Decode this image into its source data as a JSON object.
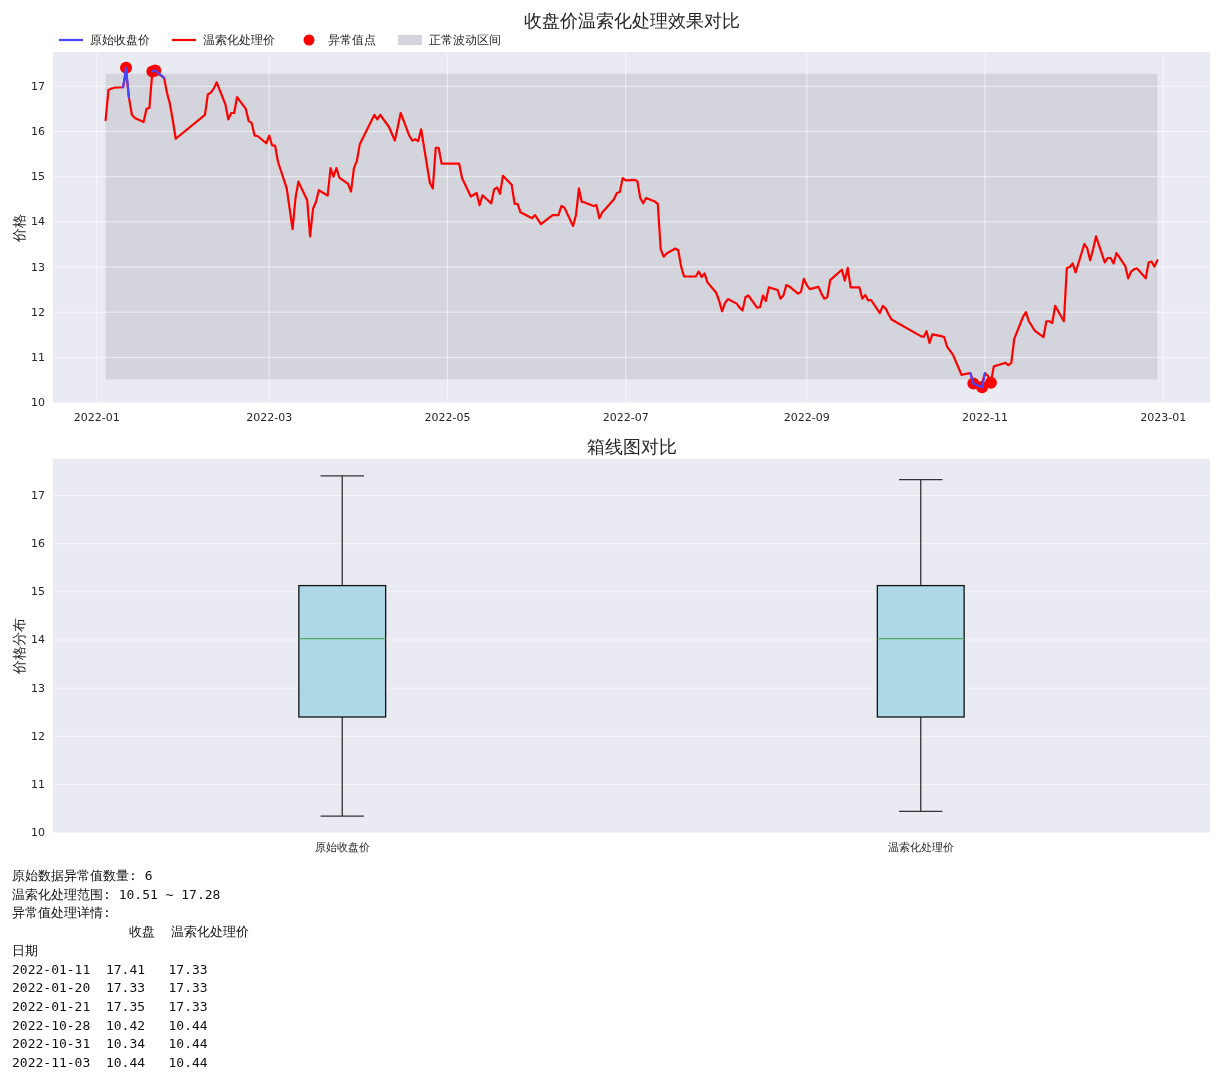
{
  "chart_data": [
    {
      "type": "line",
      "title": "收盘价温索化处理效果对比",
      "ylabel": "价格",
      "x": [
        "2022-01-04",
        "2022-01-05",
        "2022-01-06",
        "2022-01-07",
        "2022-01-10",
        "2022-01-11",
        "2022-01-12",
        "2022-01-13",
        "2022-01-14",
        "2022-01-17",
        "2022-01-18",
        "2022-01-19",
        "2022-01-20",
        "2022-01-21",
        "2022-01-24",
        "2022-01-25",
        "2022-01-26",
        "2022-01-27",
        "2022-01-28",
        "2022-02-07",
        "2022-02-08",
        "2022-02-09",
        "2022-02-10",
        "2022-02-11",
        "2022-02-14",
        "2022-02-15",
        "2022-02-16",
        "2022-02-17",
        "2022-02-18",
        "2022-02-21",
        "2022-02-22",
        "2022-02-23",
        "2022-02-24",
        "2022-02-25",
        "2022-02-28",
        "2022-03-01",
        "2022-03-02",
        "2022-03-03",
        "2022-03-04",
        "2022-03-07",
        "2022-03-08",
        "2022-03-09",
        "2022-03-10",
        "2022-03-11",
        "2022-03-14",
        "2022-03-15",
        "2022-03-16",
        "2022-03-17",
        "2022-03-18",
        "2022-03-21",
        "2022-03-22",
        "2022-03-23",
        "2022-03-24",
        "2022-03-25",
        "2022-03-28",
        "2022-03-29",
        "2022-03-30",
        "2022-03-31",
        "2022-04-01",
        "2022-04-06",
        "2022-04-07",
        "2022-04-08",
        "2022-04-11",
        "2022-04-12",
        "2022-04-13",
        "2022-04-14",
        "2022-04-15",
        "2022-04-18",
        "2022-04-19",
        "2022-04-20",
        "2022-04-21",
        "2022-04-22",
        "2022-04-25",
        "2022-04-26",
        "2022-04-27",
        "2022-04-28",
        "2022-04-29",
        "2022-05-05",
        "2022-05-06",
        "2022-05-09",
        "2022-05-10",
        "2022-05-11",
        "2022-05-12",
        "2022-05-13",
        "2022-05-16",
        "2022-05-17",
        "2022-05-18",
        "2022-05-19",
        "2022-05-20",
        "2022-05-23",
        "2022-05-24",
        "2022-05-25",
        "2022-05-26",
        "2022-05-27",
        "2022-05-30",
        "2022-05-31",
        "2022-06-01",
        "2022-06-02",
        "2022-06-06",
        "2022-06-07",
        "2022-06-08",
        "2022-06-09",
        "2022-06-10",
        "2022-06-13",
        "2022-06-14",
        "2022-06-15",
        "2022-06-16",
        "2022-06-17",
        "2022-06-20",
        "2022-06-21",
        "2022-06-22",
        "2022-06-23",
        "2022-06-24",
        "2022-06-27",
        "2022-06-28",
        "2022-06-29",
        "2022-06-30",
        "2022-07-01",
        "2022-07-04",
        "2022-07-05",
        "2022-07-06",
        "2022-07-07",
        "2022-07-08",
        "2022-07-11",
        "2022-07-12",
        "2022-07-13",
        "2022-07-14",
        "2022-07-15",
        "2022-07-18",
        "2022-07-19",
        "2022-07-20",
        "2022-07-21",
        "2022-07-22",
        "2022-07-25",
        "2022-07-26",
        "2022-07-27",
        "2022-07-28",
        "2022-07-29",
        "2022-08-01",
        "2022-08-02",
        "2022-08-03",
        "2022-08-04",
        "2022-08-05",
        "2022-08-08",
        "2022-08-09",
        "2022-08-10",
        "2022-08-11",
        "2022-08-12",
        "2022-08-15",
        "2022-08-16",
        "2022-08-17",
        "2022-08-18",
        "2022-08-19",
        "2022-08-22",
        "2022-08-23",
        "2022-08-24",
        "2022-08-25",
        "2022-08-26",
        "2022-08-29",
        "2022-08-30",
        "2022-08-31",
        "2022-09-01",
        "2022-09-02",
        "2022-09-05",
        "2022-09-06",
        "2022-09-07",
        "2022-09-08",
        "2022-09-09",
        "2022-09-13",
        "2022-09-14",
        "2022-09-15",
        "2022-09-16",
        "2022-09-19",
        "2022-09-20",
        "2022-09-21",
        "2022-09-22",
        "2022-09-23",
        "2022-09-26",
        "2022-09-27",
        "2022-09-28",
        "2022-09-29",
        "2022-09-30",
        "2022-10-10",
        "2022-10-11",
        "2022-10-12",
        "2022-10-13",
        "2022-10-14",
        "2022-10-17",
        "2022-10-18",
        "2022-10-19",
        "2022-10-20",
        "2022-10-21",
        "2022-10-24",
        "2022-10-25",
        "2022-10-26",
        "2022-10-27",
        "2022-10-28",
        "2022-10-31",
        "2022-11-01",
        "2022-11-02",
        "2022-11-03",
        "2022-11-04",
        "2022-11-07",
        "2022-11-08",
        "2022-11-09",
        "2022-11-10",
        "2022-11-11",
        "2022-11-14",
        "2022-11-15",
        "2022-11-16",
        "2022-11-17",
        "2022-11-18",
        "2022-11-21",
        "2022-11-22",
        "2022-11-23",
        "2022-11-24",
        "2022-11-25",
        "2022-11-28",
        "2022-11-29",
        "2022-11-30",
        "2022-12-01",
        "2022-12-02",
        "2022-12-05",
        "2022-12-06",
        "2022-12-07",
        "2022-12-08",
        "2022-12-09",
        "2022-12-12",
        "2022-12-13",
        "2022-12-14",
        "2022-12-15",
        "2022-12-16",
        "2022-12-19",
        "2022-12-20",
        "2022-12-21",
        "2022-12-22",
        "2022-12-23",
        "2022-12-26",
        "2022-12-27",
        "2022-12-28",
        "2022-12-29",
        "2022-12-30"
      ],
      "series": [
        {
          "name": "原始收盘价",
          "type": "line",
          "color": "#4646fb",
          "values": [
            null,
            null,
            null,
            null,
            16.98,
            17.41,
            16.75,
            null,
            null,
            null,
            null,
            null,
            17.33,
            17.35,
            17.19,
            null,
            null,
            null,
            null,
            null,
            null,
            null,
            null,
            null,
            null,
            null,
            null,
            null,
            null,
            null,
            null,
            null,
            null,
            null,
            null,
            null,
            null,
            null,
            null,
            null,
            null,
            null,
            null,
            null,
            null,
            null,
            null,
            null,
            null,
            null,
            null,
            null,
            null,
            null,
            null,
            null,
            null,
            null,
            null,
            null,
            null,
            null,
            null,
            null,
            null,
            null,
            null,
            null,
            null,
            null,
            null,
            null,
            null,
            null,
            null,
            null,
            null,
            null,
            null,
            null,
            null,
            null,
            null,
            null,
            null,
            null,
            null,
            null,
            null,
            null,
            null,
            null,
            null,
            null,
            null,
            null,
            null,
            null,
            null,
            null,
            null,
            null,
            null,
            null,
            null,
            null,
            null,
            null,
            null,
            null,
            null,
            null,
            null,
            null,
            null,
            null,
            null,
            null,
            null,
            null,
            null,
            null,
            null,
            null,
            null,
            null,
            null,
            null,
            null,
            null,
            null,
            null,
            null,
            null,
            null,
            null,
            null,
            null,
            null,
            null,
            null,
            null,
            null,
            null,
            null,
            null,
            null,
            null,
            null,
            null,
            null,
            null,
            null,
            null,
            null,
            null,
            null,
            null,
            null,
            null,
            null,
            null,
            null,
            null,
            null,
            null,
            null,
            null,
            null,
            null,
            null,
            null,
            null,
            null,
            null,
            null,
            null,
            null,
            null,
            null,
            null,
            null,
            null,
            null,
            null,
            null,
            null,
            null,
            null,
            null,
            null,
            null,
            null,
            null,
            null,
            10.65,
            10.42,
            10.34,
            10.65,
            null,
            null,
            null,
            null,
            null,
            null,
            null,
            null,
            null,
            null,
            null,
            null,
            null,
            null,
            null,
            null,
            null,
            null,
            null,
            null,
            null,
            null,
            null,
            null,
            null,
            null,
            null,
            null,
            null,
            null,
            null,
            null,
            null,
            null,
            null,
            null,
            null,
            null,
            null,
            null,
            null,
            null,
            null
          ]
        },
        {
          "name": "温索化处理价",
          "type": "line",
          "color": "#ff0000",
          "values": [
            16.25,
            16.92,
            16.95,
            16.97,
            16.98,
            17.33,
            16.75,
            16.37,
            16.3,
            16.21,
            16.5,
            16.52,
            17.33,
            17.33,
            17.19,
            16.86,
            16.62,
            16.25,
            15.84,
            16.37,
            16.82,
            16.86,
            16.95,
            17.09,
            16.6,
            16.27,
            16.41,
            16.41,
            16.76,
            16.5,
            16.23,
            16.19,
            15.91,
            15.9,
            15.74,
            15.91,
            15.69,
            15.69,
            15.33,
            14.74,
            14.29,
            13.84,
            14.53,
            14.89,
            14.48,
            13.68,
            14.29,
            14.44,
            14.7,
            14.58,
            15.19,
            15.0,
            15.19,
            14.98,
            14.84,
            14.67,
            15.19,
            15.35,
            15.72,
            16.37,
            16.27,
            16.37,
            16.1,
            15.95,
            15.8,
            16.1,
            16.41,
            15.9,
            15.8,
            15.83,
            15.79,
            16.05,
            14.86,
            14.74,
            15.64,
            15.64,
            15.29,
            15.29,
            14.97,
            14.56,
            14.6,
            14.64,
            14.37,
            14.59,
            14.41,
            14.72,
            14.76,
            14.62,
            15.02,
            14.82,
            14.4,
            14.4,
            14.21,
            14.18,
            14.08,
            14.15,
            14.05,
            13.95,
            14.15,
            14.15,
            14.15,
            14.35,
            14.32,
            13.91,
            14.15,
            14.74,
            14.44,
            14.43,
            14.35,
            14.37,
            14.08,
            14.21,
            14.28,
            14.5,
            14.64,
            14.66,
            14.97,
            14.92,
            14.93,
            14.9,
            14.53,
            14.41,
            14.53,
            14.45,
            14.4,
            13.39,
            13.23,
            13.3,
            13.41,
            13.37,
            13.01,
            12.79,
            12.79,
            12.79,
            12.9,
            12.78,
            12.86,
            12.66,
            12.43,
            12.25,
            12.02,
            12.2,
            12.29,
            12.19,
            12.1,
            12.04,
            12.33,
            12.37,
            12.1,
            12.11,
            12.37,
            12.25,
            12.55,
            12.49,
            12.3,
            12.37,
            12.6,
            12.57,
            12.41,
            12.45,
            12.74,
            12.6,
            12.51,
            12.56,
            12.41,
            12.3,
            12.33,
            12.71,
            12.94,
            12.7,
            12.98,
            12.55,
            12.55,
            12.3,
            12.38,
            12.26,
            12.27,
            11.98,
            12.14,
            12.08,
            11.95,
            11.84,
            11.47,
            11.45,
            11.58,
            11.32,
            11.51,
            11.47,
            11.45,
            11.24,
            11.15,
            11.06,
            10.61,
            10.63,
            10.64,
            10.65,
            10.44,
            10.44,
            10.65,
            10.59,
            10.44,
            10.8,
            10.86,
            10.88,
            10.83,
            10.88,
            11.41,
            11.9,
            12.0,
            11.8,
            11.7,
            11.59,
            11.45,
            11.8,
            11.8,
            11.76,
            12.14,
            11.8,
            12.98,
            13.0,
            13.08,
            12.88,
            13.51,
            13.41,
            13.15,
            13.4,
            13.68,
            13.1,
            13.2,
            13.2,
            13.08,
            13.31,
            13.02,
            12.75,
            12.9,
            12.95,
            12.97,
            12.75,
            13.1,
            13.12,
            13.01,
            13.15
          ]
        },
        {
          "name": "异常值点",
          "type": "scatter",
          "marker": "circle",
          "color": "#ff0000",
          "x": [
            "2022-01-11",
            "2022-01-20",
            "2022-01-21",
            "2022-10-28",
            "2022-10-31",
            "2022-11-03"
          ],
          "values": [
            17.41,
            17.33,
            17.35,
            10.42,
            10.34,
            10.44
          ]
        }
      ],
      "bands": [
        {
          "axis": "y",
          "from": 10.51,
          "to": 17.28,
          "label": "正常波动区间",
          "color": "#d4d5dc"
        }
      ],
      "xlim": [
        "2021-12-17",
        "2023-01-17"
      ],
      "xticks": [
        "2022-01",
        "2022-03",
        "2022-05",
        "2022-07",
        "2022-09",
        "2022-11",
        "2023-01"
      ],
      "ylim": [
        9.99,
        17.76
      ],
      "yticks": [
        10,
        11,
        12,
        13,
        14,
        15,
        16,
        17
      ],
      "grid": true,
      "legend": "top left"
    },
    {
      "type": "box",
      "title": "箱线图对比",
      "ylabel": "价格分布",
      "categories": [
        "原始收盘价",
        "温索化处理价"
      ],
      "series": [
        {
          "color": "#add8e6",
          "boxes": [
            {
              "low": 10.34,
              "q1": 12.4,
              "median": 14.03,
              "q3": 15.13,
              "high": 17.41
            },
            {
              "low": 10.44,
              "q1": 12.4,
              "median": 14.03,
              "q3": 15.13,
              "high": 17.33
            }
          ]
        }
      ],
      "ylim": [
        9.99,
        17.76
      ],
      "yticks": [
        10,
        11,
        12,
        13,
        14,
        15,
        16,
        17
      ],
      "grid": "y"
    },
    {
      "type": "other",
      "annotations": [
        "原始数据异常值数量: 6",
        "温索化处理范围: 10.51 ~ 17.28",
        "异常值处理详情:",
        "               收盘  温索化处理价",
        "日期",
        "2022-01-11  17.41   17.33",
        "2022-01-20  17.33   17.33",
        "2022-01-21  17.35   17.33",
        "2022-10-28  10.42   10.44",
        "2022-10-31  10.34   10.44",
        "2022-11-03  10.44   10.44"
      ]
    }
  ]
}
